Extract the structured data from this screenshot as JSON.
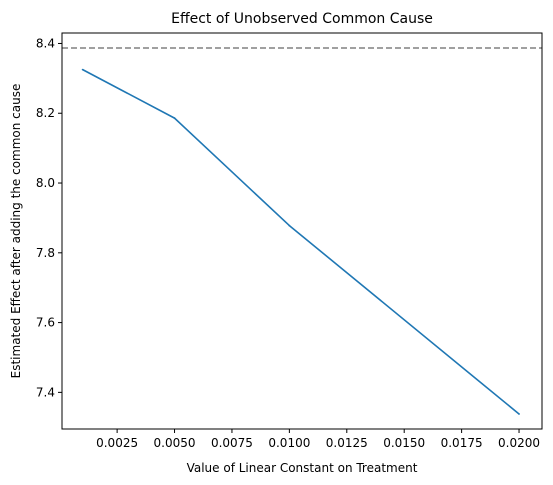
{
  "chart_data": {
    "type": "line",
    "title": "Effect of Unobserved Common Cause",
    "xlabel": "Value of Linear Constant on Treatment",
    "ylabel": "Estimated Effect after adding the common cause",
    "xlim": [
      0.0001,
      0.021
    ],
    "ylim": [
      7.295,
      8.43
    ],
    "xticks": [
      0.0025,
      0.005,
      0.0075,
      0.01,
      0.0125,
      0.015,
      0.0175,
      0.02
    ],
    "xtick_labels": [
      "0.0025",
      "0.0050",
      "0.0075",
      "0.0100",
      "0.0125",
      "0.0150",
      "0.0175",
      "0.0200"
    ],
    "yticks": [
      7.4,
      7.6,
      7.8,
      8.0,
      8.2,
      8.4
    ],
    "ytick_labels": [
      "7.4",
      "7.6",
      "7.8",
      "8.0",
      "8.2",
      "8.4"
    ],
    "grid": false,
    "series": [
      {
        "color": "#1f77b4",
        "x": [
          0.001,
          0.005,
          0.01,
          0.02
        ],
        "y": [
          8.325,
          8.186,
          7.878,
          7.338
        ]
      }
    ],
    "reference_line": {
      "y": 8.387,
      "style": "dashed",
      "color": "#808080"
    }
  }
}
